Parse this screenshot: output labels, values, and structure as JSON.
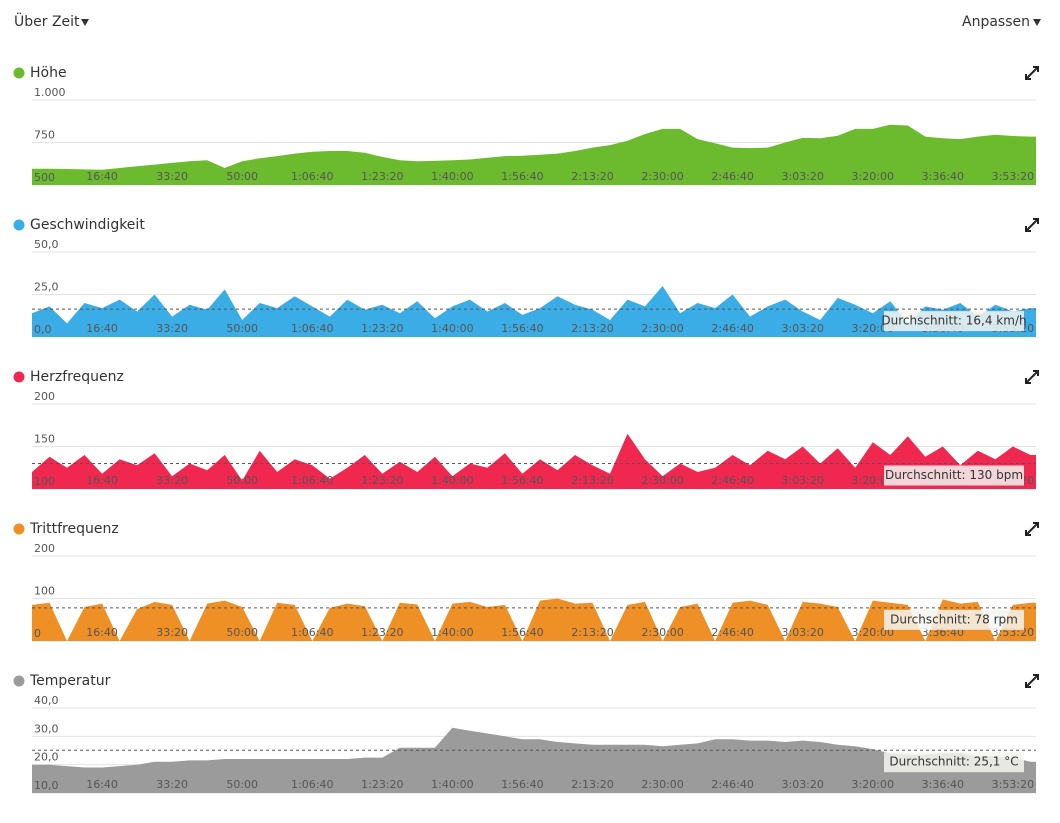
{
  "header": {
    "view": "Über Zeit",
    "customize": "Anpassen"
  },
  "chart_data": [
    {
      "type": "area",
      "title": "Höhe",
      "color": "#6cbb2f",
      "x": [
        0,
        250,
        500,
        750,
        1000,
        1250,
        1500,
        1750,
        2000,
        2250,
        2500,
        2750,
        3000,
        3250,
        3500,
        3750,
        4000,
        4250,
        4500,
        4750,
        5000,
        5250,
        5500,
        5750,
        6000,
        6250,
        6500,
        6750,
        7000,
        7250,
        7500,
        7750,
        8000,
        8250,
        8500,
        8750,
        9000,
        9250,
        9500,
        9750,
        10000,
        10250,
        10500,
        10750,
        11000,
        11250,
        11500,
        11750,
        12000,
        12250,
        12500,
        12750,
        13000,
        13250,
        13500,
        13750,
        14000,
        14250
      ],
      "values": [
        596,
        595,
        594,
        592,
        590,
        600,
        610,
        620,
        630,
        640,
        645,
        600,
        640,
        657,
        670,
        685,
        695,
        700,
        700,
        690,
        665,
        645,
        640,
        642,
        645,
        650,
        660,
        670,
        672,
        678,
        685,
        700,
        720,
        735,
        760,
        800,
        830,
        830,
        770,
        745,
        720,
        717,
        720,
        750,
        777,
        775,
        790,
        830,
        830,
        855,
        850,
        785,
        775,
        770,
        785,
        795,
        788,
        785
      ],
      "ylim": [
        500,
        1000
      ],
      "yticks": [
        500,
        750,
        {
          "value": 1000,
          "label": "1.000"
        }
      ],
      "xlim": [
        0,
        14330
      ],
      "xticks": [
        {
          "value": 1000,
          "label": "16:40"
        },
        {
          "value": 2000,
          "label": "33:20"
        },
        {
          "value": 3000,
          "label": "50:00"
        },
        {
          "value": 4000,
          "label": "1:06:40"
        },
        {
          "value": 5000,
          "label": "1:23:20"
        },
        {
          "value": 6000,
          "label": "1:40:00"
        },
        {
          "value": 7000,
          "label": "1:56:40"
        },
        {
          "value": 8000,
          "label": "2:13:20"
        },
        {
          "value": 9000,
          "label": "2:30:00"
        },
        {
          "value": 10000,
          "label": "2:46:40"
        },
        {
          "value": 11000,
          "label": "3:03:20"
        },
        {
          "value": 12000,
          "label": "3:20:00"
        },
        {
          "value": 13000,
          "label": "3:36:40"
        },
        {
          "value": 14000,
          "label": "3:53:20"
        }
      ]
    },
    {
      "type": "area",
      "title": "Geschwindigkeit",
      "color": "#3bade6",
      "x": [
        0,
        250,
        500,
        750,
        1000,
        1250,
        1500,
        1750,
        2000,
        2250,
        2500,
        2750,
        3000,
        3250,
        3500,
        3750,
        4000,
        4250,
        4500,
        4750,
        5000,
        5250,
        5500,
        5750,
        6000,
        6250,
        6500,
        6750,
        7000,
        7250,
        7500,
        7750,
        8000,
        8250,
        8500,
        8750,
        9000,
        9250,
        9500,
        9750,
        10000,
        10250,
        10500,
        10750,
        11000,
        11250,
        11500,
        11750,
        12000,
        12250,
        12500,
        12750,
        13000,
        13250,
        13500,
        13750,
        14000,
        14250
      ],
      "values": [
        14,
        18,
        8,
        20,
        17,
        22,
        15,
        25,
        12,
        19,
        16,
        28,
        10,
        20,
        17,
        24,
        18,
        12,
        22,
        16,
        19,
        14,
        21,
        11,
        18,
        22,
        15,
        20,
        13,
        17,
        24,
        19,
        16,
        10,
        22,
        18,
        30,
        14,
        20,
        17,
        25,
        12,
        18,
        22,
        15,
        10,
        23,
        19,
        14,
        21,
        8,
        18,
        16,
        20,
        12,
        19,
        15,
        17
      ],
      "ylim": [
        0,
        50
      ],
      "yticks": [
        {
          "value": 0,
          "label": "0,0"
        },
        {
          "value": 25,
          "label": "25,0"
        },
        {
          "value": 50,
          "label": "50,0"
        }
      ],
      "xlim": [
        0,
        14330
      ],
      "xticks": [
        {
          "value": 1000,
          "label": "16:40"
        },
        {
          "value": 2000,
          "label": "33:20"
        },
        {
          "value": 3000,
          "label": "50:00"
        },
        {
          "value": 4000,
          "label": "1:06:40"
        },
        {
          "value": 5000,
          "label": "1:23:20"
        },
        {
          "value": 6000,
          "label": "1:40:00"
        },
        {
          "value": 7000,
          "label": "1:56:40"
        },
        {
          "value": 8000,
          "label": "2:13:20"
        },
        {
          "value": 9000,
          "label": "2:30:00"
        },
        {
          "value": 10000,
          "label": "2:46:40"
        },
        {
          "value": 11000,
          "label": "3:03:20"
        },
        {
          "value": 12000,
          "label": "3:20:00"
        },
        {
          "value": 13000,
          "label": "3:36:40"
        },
        {
          "value": 14000,
          "label": "3:53:20"
        }
      ],
      "average": {
        "value": 16.4,
        "label": "Durchschnitt: 16,4 km/h"
      }
    },
    {
      "type": "area",
      "title": "Herzfrequenz",
      "color": "#f0284f",
      "x": [
        0,
        250,
        500,
        750,
        1000,
        1250,
        1500,
        1750,
        2000,
        2250,
        2500,
        2750,
        3000,
        3250,
        3500,
        3750,
        4000,
        4250,
        4500,
        4750,
        5000,
        5250,
        5500,
        5750,
        6000,
        6250,
        6500,
        6750,
        7000,
        7250,
        7500,
        7750,
        8000,
        8250,
        8500,
        8750,
        9000,
        9250,
        9500,
        9750,
        10000,
        10250,
        10500,
        10750,
        11000,
        11250,
        11500,
        11750,
        12000,
        12250,
        12500,
        12750,
        13000,
        13250,
        13500,
        13750,
        14000,
        14250
      ],
      "values": [
        120,
        138,
        125,
        140,
        118,
        135,
        128,
        142,
        115,
        130,
        122,
        140,
        110,
        145,
        120,
        135,
        128,
        112,
        125,
        140,
        118,
        132,
        120,
        138,
        115,
        130,
        125,
        142,
        118,
        135,
        122,
        140,
        128,
        118,
        165,
        135,
        115,
        130,
        120,
        125,
        140,
        128,
        145,
        135,
        150,
        130,
        148,
        125,
        155,
        140,
        162,
        138,
        150,
        128,
        145,
        135,
        150,
        140
      ],
      "ylim": [
        100,
        200
      ],
      "yticks": [
        100,
        150,
        200
      ],
      "xlim": [
        0,
        14330
      ],
      "xticks": [
        {
          "value": 1000,
          "label": "16:40"
        },
        {
          "value": 2000,
          "label": "33:20"
        },
        {
          "value": 3000,
          "label": "50:00"
        },
        {
          "value": 4000,
          "label": "1:06:40"
        },
        {
          "value": 5000,
          "label": "1:23:20"
        },
        {
          "value": 6000,
          "label": "1:40:00"
        },
        {
          "value": 7000,
          "label": "1:56:40"
        },
        {
          "value": 8000,
          "label": "2:13:20"
        },
        {
          "value": 9000,
          "label": "2:30:00"
        },
        {
          "value": 10000,
          "label": "2:46:40"
        },
        {
          "value": 11000,
          "label": "3:03:20"
        },
        {
          "value": 12000,
          "label": "3:20:00"
        },
        {
          "value": 13000,
          "label": "3:36:40"
        },
        {
          "value": 14000,
          "label": "3:53:20"
        }
      ],
      "average": {
        "value": 130,
        "label": "Durchschnitt: 130 bpm"
      }
    },
    {
      "type": "area",
      "title": "Trittfrequenz",
      "color": "#ef9026",
      "x": [
        0,
        250,
        500,
        750,
        1000,
        1250,
        1500,
        1750,
        2000,
        2250,
        2500,
        2750,
        3000,
        3250,
        3500,
        3750,
        4000,
        4250,
        4500,
        4750,
        5000,
        5250,
        5500,
        5750,
        6000,
        6250,
        6500,
        6750,
        7000,
        7250,
        7500,
        7750,
        8000,
        8250,
        8500,
        8750,
        9000,
        9250,
        9500,
        9750,
        10000,
        10250,
        10500,
        10750,
        11000,
        11250,
        11500,
        11750,
        12000,
        12250,
        12500,
        12750,
        13000,
        13250,
        13500,
        13750,
        14000,
        14250
      ],
      "values": [
        85,
        90,
        0,
        80,
        88,
        0,
        75,
        92,
        85,
        0,
        88,
        95,
        80,
        0,
        90,
        85,
        0,
        78,
        88,
        82,
        0,
        90,
        86,
        0,
        88,
        92,
        80,
        85,
        0,
        95,
        100,
        88,
        90,
        0,
        85,
        92,
        0,
        80,
        88,
        0,
        90,
        95,
        85,
        0,
        92,
        88,
        80,
        0,
        95,
        90,
        85,
        0,
        98,
        88,
        92,
        0,
        85,
        90
      ],
      "ylim": [
        0,
        200
      ],
      "yticks": [
        0,
        100,
        200
      ],
      "xlim": [
        0,
        14330
      ],
      "xticks": [
        {
          "value": 1000,
          "label": "16:40"
        },
        {
          "value": 2000,
          "label": "33:20"
        },
        {
          "value": 3000,
          "label": "50:00"
        },
        {
          "value": 4000,
          "label": "1:06:40"
        },
        {
          "value": 5000,
          "label": "1:23:20"
        },
        {
          "value": 6000,
          "label": "1:40:00"
        },
        {
          "value": 7000,
          "label": "1:56:40"
        },
        {
          "value": 8000,
          "label": "2:13:20"
        },
        {
          "value": 9000,
          "label": "2:30:00"
        },
        {
          "value": 10000,
          "label": "2:46:40"
        },
        {
          "value": 11000,
          "label": "3:03:20"
        },
        {
          "value": 12000,
          "label": "3:20:00"
        },
        {
          "value": 13000,
          "label": "3:36:40"
        },
        {
          "value": 14000,
          "label": "3:53:20"
        }
      ],
      "average": {
        "value": 78,
        "label": "Durchschnitt: 78 rpm"
      }
    },
    {
      "type": "area",
      "title": "Temperatur",
      "color": "#9b9b9b",
      "x": [
        0,
        250,
        500,
        750,
        1000,
        1250,
        1500,
        1750,
        2000,
        2250,
        2500,
        2750,
        3000,
        3250,
        3500,
        3750,
        4000,
        4250,
        4500,
        4750,
        5000,
        5250,
        5500,
        5750,
        6000,
        6250,
        6500,
        6750,
        7000,
        7250,
        7500,
        7750,
        8000,
        8250,
        8500,
        8750,
        9000,
        9250,
        9500,
        9750,
        10000,
        10250,
        10500,
        10750,
        11000,
        11250,
        11500,
        11750,
        12000,
        12250,
        12500,
        12750,
        13000,
        13250,
        13500,
        13750,
        14000,
        14250
      ],
      "values": [
        20,
        20,
        19.5,
        19,
        19,
        19.5,
        20,
        21,
        21,
        21.5,
        21.5,
        22,
        22,
        22,
        22,
        22,
        22,
        22,
        22,
        22.5,
        22.5,
        26,
        26,
        26,
        33,
        32,
        31,
        30,
        29,
        29,
        28,
        27.5,
        27,
        27,
        27,
        27,
        26.5,
        27,
        27.5,
        29,
        29,
        28.5,
        28.5,
        28,
        28.5,
        28,
        27,
        26.5,
        25.5,
        24,
        23.5,
        23.5,
        24,
        24,
        23,
        23,
        22.5,
        21
      ],
      "ylim": [
        10,
        40
      ],
      "yticks": [
        {
          "value": 10,
          "label": "10,0"
        },
        {
          "value": 20,
          "label": "20,0"
        },
        {
          "value": 30,
          "label": "30,0"
        },
        {
          "value": 40,
          "label": "40,0"
        }
      ],
      "xlim": [
        0,
        14330
      ],
      "xticks": [
        {
          "value": 1000,
          "label": "16:40"
        },
        {
          "value": 2000,
          "label": "33:20"
        },
        {
          "value": 3000,
          "label": "50:00"
        },
        {
          "value": 4000,
          "label": "1:06:40"
        },
        {
          "value": 5000,
          "label": "1:23:20"
        },
        {
          "value": 6000,
          "label": "1:40:00"
        },
        {
          "value": 7000,
          "label": "1:56:40"
        },
        {
          "value": 8000,
          "label": "2:13:20"
        },
        {
          "value": 9000,
          "label": "2:30:00"
        },
        {
          "value": 10000,
          "label": "2:46:40"
        },
        {
          "value": 11000,
          "label": "3:03:20"
        },
        {
          "value": 12000,
          "label": "3:20:00"
        },
        {
          "value": 13000,
          "label": "3:36:40"
        },
        {
          "value": 14000,
          "label": "3:53:20"
        }
      ],
      "average": {
        "value": 25.1,
        "label": "Durchschnitt: 25,1 °C"
      }
    }
  ]
}
